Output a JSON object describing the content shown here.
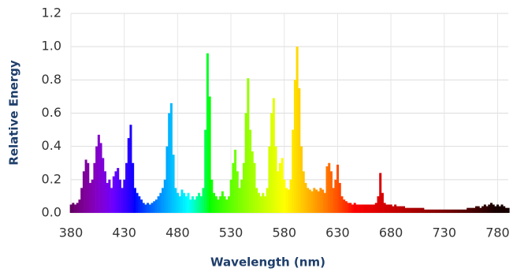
{
  "chart_data": {
    "type": "bar",
    "x_label": "Wavelength (nm)",
    "y_label": "Relative Energy",
    "x": [
      380,
      382,
      384,
      386,
      388,
      390,
      392,
      394,
      396,
      398,
      400,
      402,
      404,
      406,
      408,
      410,
      412,
      414,
      416,
      418,
      420,
      422,
      424,
      426,
      428,
      430,
      432,
      434,
      436,
      438,
      440,
      442,
      444,
      446,
      448,
      450,
      452,
      454,
      456,
      458,
      460,
      462,
      464,
      466,
      468,
      470,
      472,
      474,
      476,
      478,
      480,
      482,
      484,
      486,
      488,
      490,
      492,
      494,
      496,
      498,
      500,
      502,
      504,
      506,
      508,
      510,
      512,
      514,
      516,
      518,
      520,
      522,
      524,
      526,
      528,
      530,
      532,
      534,
      536,
      538,
      540,
      542,
      544,
      546,
      548,
      550,
      552,
      554,
      556,
      558,
      560,
      562,
      564,
      566,
      568,
      570,
      572,
      574,
      576,
      578,
      580,
      582,
      584,
      586,
      588,
      590,
      592,
      594,
      596,
      598,
      600,
      602,
      604,
      606,
      608,
      610,
      612,
      614,
      616,
      618,
      620,
      622,
      624,
      626,
      628,
      630,
      632,
      634,
      636,
      638,
      640,
      642,
      644,
      646,
      648,
      650,
      652,
      654,
      656,
      658,
      660,
      662,
      664,
      666,
      668,
      670,
      672,
      674,
      676,
      678,
      680,
      682,
      684,
      686,
      688,
      690,
      692,
      694,
      696,
      698,
      700,
      702,
      704,
      706,
      708,
      710,
      712,
      714,
      716,
      718,
      720,
      722,
      724,
      726,
      728,
      730,
      732,
      734,
      736,
      738,
      740,
      742,
      744,
      746,
      748,
      750,
      752,
      754,
      756,
      758,
      760,
      762,
      764,
      766,
      768,
      770,
      772,
      774,
      776,
      778,
      780,
      782,
      784,
      786,
      788,
      790
    ],
    "values": [
      0.05,
      0.06,
      0.05,
      0.06,
      0.08,
      0.15,
      0.25,
      0.32,
      0.3,
      0.18,
      0.2,
      0.3,
      0.4,
      0.47,
      0.42,
      0.33,
      0.25,
      0.18,
      0.2,
      0.15,
      0.22,
      0.25,
      0.27,
      0.2,
      0.15,
      0.2,
      0.3,
      0.45,
      0.53,
      0.3,
      0.15,
      0.12,
      0.1,
      0.08,
      0.06,
      0.05,
      0.06,
      0.05,
      0.06,
      0.07,
      0.08,
      0.1,
      0.12,
      0.15,
      0.2,
      0.4,
      0.6,
      0.66,
      0.35,
      0.15,
      0.12,
      0.1,
      0.14,
      0.12,
      0.1,
      0.12,
      0.08,
      0.1,
      0.08,
      0.1,
      0.12,
      0.1,
      0.15,
      0.5,
      0.96,
      0.7,
      0.2,
      0.12,
      0.1,
      0.08,
      0.1,
      0.13,
      0.1,
      0.08,
      0.1,
      0.2,
      0.3,
      0.38,
      0.25,
      0.15,
      0.2,
      0.3,
      0.6,
      0.81,
      0.5,
      0.37,
      0.3,
      0.15,
      0.12,
      0.1,
      0.12,
      0.1,
      0.15,
      0.4,
      0.6,
      0.69,
      0.4,
      0.25,
      0.3,
      0.33,
      0.2,
      0.15,
      0.14,
      0.2,
      0.5,
      0.8,
      1.0,
      0.75,
      0.4,
      0.25,
      0.18,
      0.15,
      0.14,
      0.13,
      0.15,
      0.14,
      0.13,
      0.15,
      0.14,
      0.12,
      0.28,
      0.3,
      0.25,
      0.15,
      0.2,
      0.29,
      0.18,
      0.1,
      0.08,
      0.07,
      0.06,
      0.06,
      0.05,
      0.06,
      0.05,
      0.05,
      0.05,
      0.05,
      0.05,
      0.05,
      0.05,
      0.05,
      0.05,
      0.06,
      0.1,
      0.24,
      0.12,
      0.06,
      0.05,
      0.05,
      0.05,
      0.04,
      0.05,
      0.04,
      0.04,
      0.04,
      0.04,
      0.03,
      0.03,
      0.03,
      0.03,
      0.03,
      0.03,
      0.03,
      0.03,
      0.03,
      0.02,
      0.02,
      0.02,
      0.02,
      0.02,
      0.02,
      0.02,
      0.02,
      0.02,
      0.02,
      0.02,
      0.02,
      0.02,
      0.02,
      0.02,
      0.02,
      0.02,
      0.02,
      0.02,
      0.02,
      0.03,
      0.03,
      0.03,
      0.03,
      0.04,
      0.04,
      0.03,
      0.04,
      0.05,
      0.04,
      0.05,
      0.06,
      0.05,
      0.04,
      0.05,
      0.04,
      0.05,
      0.04,
      0.03,
      0.03
    ],
    "xlim": [
      380,
      790
    ],
    "xticks": [
      380,
      430,
      480,
      530,
      580,
      630,
      680,
      730,
      780
    ],
    "ylim": [
      0,
      1.2
    ],
    "yticks": [
      {
        "value": 0,
        "label": "0.0"
      },
      0.2,
      0.4,
      0.6,
      0.8,
      {
        "value": 1,
        "label": "1.0"
      },
      1.2
    ],
    "grid": true
  }
}
